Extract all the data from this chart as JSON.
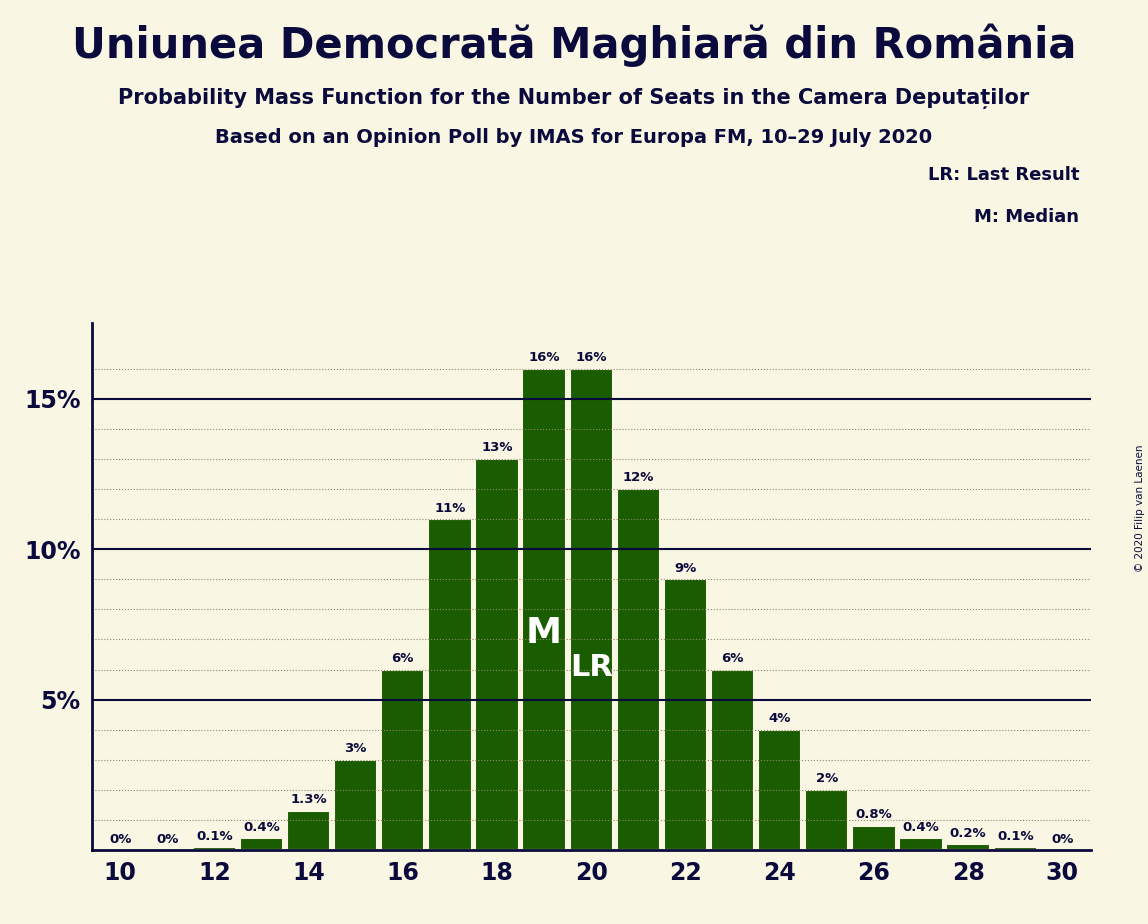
{
  "title": "Uniunea Democrată Maghiară din România",
  "subtitle1": "Probability Mass Function for the Number of Seats in the Camera Deputaților",
  "subtitle2": "Based on an Opinion Poll by IMAS for Europa FM, 10–29 July 2020",
  "copyright": "© 2020 Filip van Laenen",
  "seats": [
    10,
    11,
    12,
    13,
    14,
    15,
    16,
    17,
    18,
    19,
    20,
    21,
    22,
    23,
    24,
    25,
    26,
    27,
    28,
    29,
    30
  ],
  "probabilities": [
    0.0,
    0.0,
    0.1,
    0.4,
    1.3,
    3.0,
    6.0,
    11.0,
    13.0,
    16.0,
    16.0,
    12.0,
    9.0,
    6.0,
    4.0,
    2.0,
    0.8,
    0.4,
    0.2,
    0.1,
    0.0
  ],
  "bar_color": "#1a5c00",
  "bar_edge_color": "#faf6e4",
  "background_color": "#faf6e4",
  "text_color": "#0a0a3c",
  "yticks": [
    5,
    10,
    15
  ],
  "ytick_labels": [
    "5%",
    "10%",
    "15%"
  ],
  "xticks": [
    10,
    12,
    14,
    16,
    18,
    20,
    22,
    24,
    26,
    28,
    30
  ],
  "median_seat": 19,
  "lr_seat": 20,
  "median_label": "M",
  "lr_label": "LR"
}
